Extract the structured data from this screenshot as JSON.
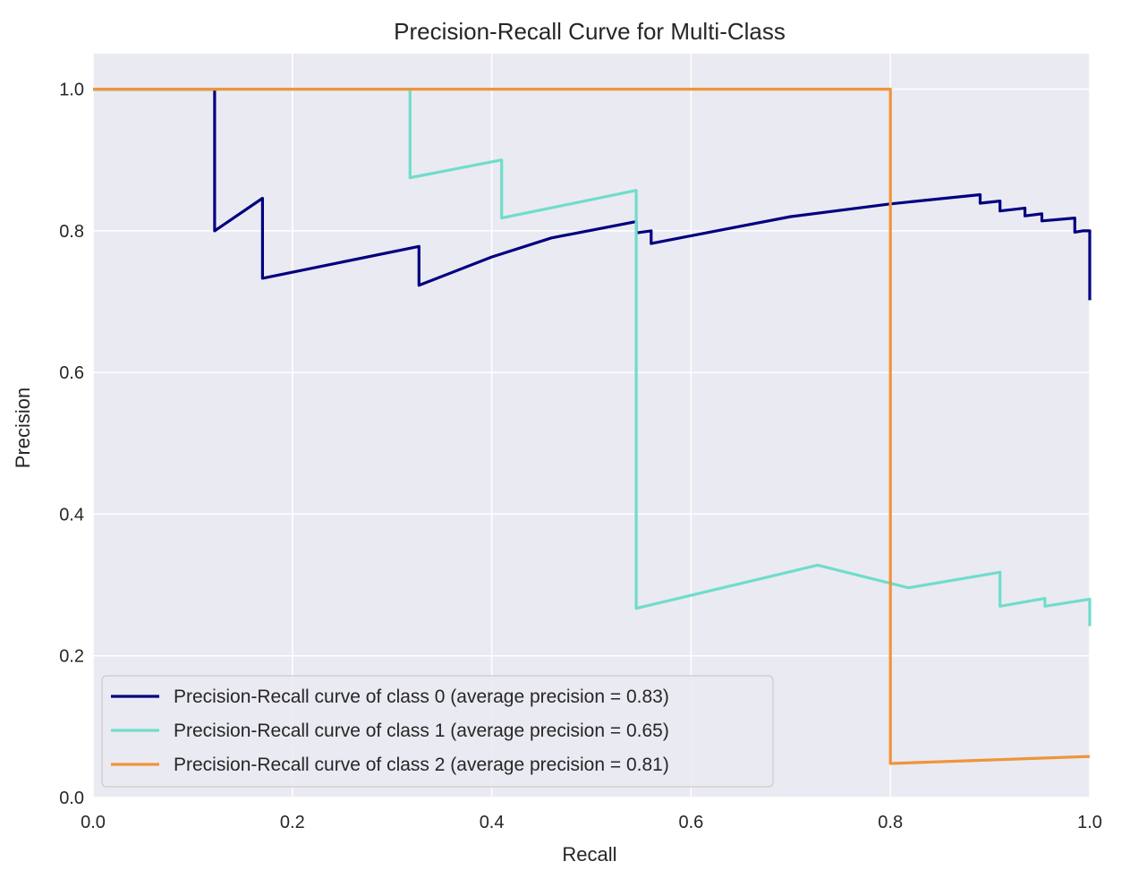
{
  "chart_data": {
    "type": "line",
    "title": "Precision-Recall Curve for Multi-Class",
    "xlabel": "Recall",
    "ylabel": "Precision",
    "xlim": [
      0.0,
      1.0
    ],
    "ylim": [
      0.0,
      1.05
    ],
    "xticks": [
      "0.0",
      "0.2",
      "0.4",
      "0.6",
      "0.8",
      "1.0"
    ],
    "yticks": [
      "0.0",
      "0.2",
      "0.4",
      "0.6",
      "0.8",
      "1.0"
    ],
    "xtick_values": [
      0.0,
      0.2,
      0.4,
      0.6,
      0.8,
      1.0
    ],
    "ytick_values": [
      0.0,
      0.2,
      0.4,
      0.6,
      0.8,
      1.0
    ],
    "grid": true,
    "legend_position": "lower-left",
    "background_color": "#eaeaf2",
    "series": [
      {
        "name": "Precision-Recall curve of class 0 (average precision = 0.83)",
        "color": "#000080",
        "points": [
          [
            0.0,
            1.0
          ],
          [
            0.122,
            1.0
          ],
          [
            0.122,
            0.8
          ],
          [
            0.17,
            0.846
          ],
          [
            0.17,
            0.733
          ],
          [
            0.327,
            0.778
          ],
          [
            0.327,
            0.723
          ],
          [
            0.4,
            0.763
          ],
          [
            0.46,
            0.79
          ],
          [
            0.545,
            0.813
          ],
          [
            0.545,
            0.797
          ],
          [
            0.56,
            0.8
          ],
          [
            0.56,
            0.782
          ],
          [
            0.6,
            0.793
          ],
          [
            0.7,
            0.82
          ],
          [
            0.8,
            0.838
          ],
          [
            0.89,
            0.851
          ],
          [
            0.89,
            0.839
          ],
          [
            0.91,
            0.842
          ],
          [
            0.91,
            0.828
          ],
          [
            0.935,
            0.832
          ],
          [
            0.935,
            0.821
          ],
          [
            0.952,
            0.824
          ],
          [
            0.952,
            0.814
          ],
          [
            0.985,
            0.818
          ],
          [
            0.985,
            0.798
          ],
          [
            0.993,
            0.8
          ],
          [
            1.0,
            0.8
          ],
          [
            1.0,
            0.702
          ]
        ]
      },
      {
        "name": "Precision-Recall curve of class 1 (average precision = 0.65)",
        "color": "#6fddcb",
        "points": [
          [
            0.0,
            1.0
          ],
          [
            0.318,
            1.0
          ],
          [
            0.318,
            0.875
          ],
          [
            0.41,
            0.9
          ],
          [
            0.41,
            0.818
          ],
          [
            0.545,
            0.857
          ],
          [
            0.545,
            0.267
          ],
          [
            0.727,
            0.328
          ],
          [
            0.818,
            0.296
          ],
          [
            0.91,
            0.318
          ],
          [
            0.91,
            0.27
          ],
          [
            0.955,
            0.281
          ],
          [
            0.955,
            0.27
          ],
          [
            1.0,
            0.28
          ],
          [
            1.0,
            0.242
          ]
        ]
      },
      {
        "name": "Precision-Recall curve of class 2 (average precision = 0.81)",
        "color": "#f0943a",
        "points": [
          [
            0.0,
            1.0
          ],
          [
            0.8,
            1.0
          ],
          [
            0.8,
            0.048
          ],
          [
            1.0,
            0.058
          ]
        ]
      }
    ]
  }
}
